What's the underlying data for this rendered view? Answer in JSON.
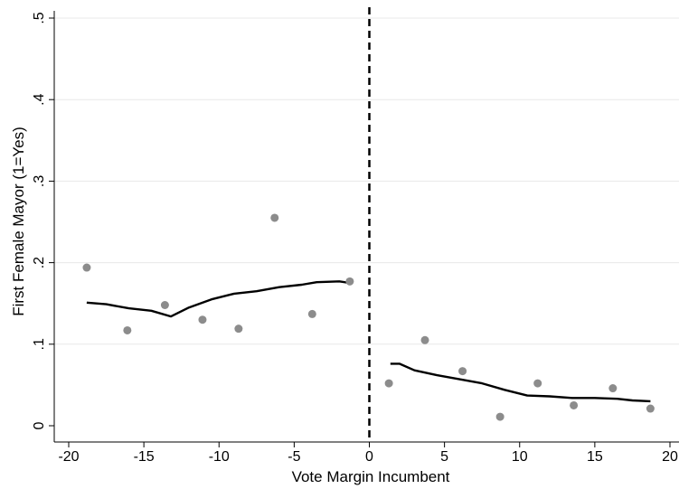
{
  "chart_data": {
    "type": "scatter",
    "title": "",
    "xlabel": "Vote Margin Incumbent",
    "ylabel": "First Female Mayor (1=Yes)",
    "xlim": [
      -20,
      20
    ],
    "ylim": [
      0,
      0.5
    ],
    "x_ticks": [
      -20,
      -15,
      -10,
      -5,
      0,
      5,
      10,
      15,
      20
    ],
    "x_tick_labels": [
      "-20",
      "-15",
      "-10",
      "-5",
      "0",
      "5",
      "10",
      "15",
      "20"
    ],
    "y_ticks": [
      0,
      0.1,
      0.2,
      0.3,
      0.4,
      0.5
    ],
    "y_tick_labels": [
      "0",
      ".1",
      ".2",
      ".3",
      ".4",
      ".5"
    ],
    "grid": true,
    "cutoff_line": {
      "x": 0,
      "style": "dashed",
      "color": "#000000"
    },
    "series": [
      {
        "type": "scatter",
        "color": "#8c8c8c",
        "points": [
          [
            -18.8,
            0.194
          ],
          [
            -16.1,
            0.117
          ],
          [
            -13.6,
            0.148
          ],
          [
            -11.1,
            0.13
          ],
          [
            -8.7,
            0.119
          ],
          [
            -6.3,
            0.255
          ],
          [
            -3.8,
            0.137
          ],
          [
            -1.3,
            0.177
          ],
          [
            1.3,
            0.052
          ],
          [
            3.7,
            0.105
          ],
          [
            6.2,
            0.067
          ],
          [
            8.7,
            0.011
          ],
          [
            11.2,
            0.052
          ],
          [
            13.6,
            0.025
          ],
          [
            16.2,
            0.046
          ],
          [
            18.7,
            0.021
          ]
        ]
      },
      {
        "type": "line",
        "color": "#000000",
        "points": [
          [
            -18.8,
            0.151
          ],
          [
            -17.5,
            0.149
          ],
          [
            -16,
            0.144
          ],
          [
            -14.5,
            0.141
          ],
          [
            -13.2,
            0.134
          ],
          [
            -12,
            0.145
          ],
          [
            -10.5,
            0.155
          ],
          [
            -9,
            0.162
          ],
          [
            -7.5,
            0.165
          ],
          [
            -6,
            0.17
          ],
          [
            -4.5,
            0.173
          ],
          [
            -3.5,
            0.176
          ],
          [
            -2,
            0.177
          ],
          [
            -1.3,
            0.175
          ]
        ]
      },
      {
        "type": "line",
        "color": "#000000",
        "points": [
          [
            1.4,
            0.076
          ],
          [
            2,
            0.076
          ],
          [
            3,
            0.068
          ],
          [
            4.5,
            0.062
          ],
          [
            6,
            0.057
          ],
          [
            7.5,
            0.052
          ],
          [
            9,
            0.044
          ],
          [
            10.5,
            0.037
          ],
          [
            12,
            0.036
          ],
          [
            13.5,
            0.034
          ],
          [
            15,
            0.034
          ],
          [
            16.5,
            0.033
          ],
          [
            17.5,
            0.031
          ],
          [
            18.7,
            0.03
          ]
        ]
      }
    ]
  }
}
